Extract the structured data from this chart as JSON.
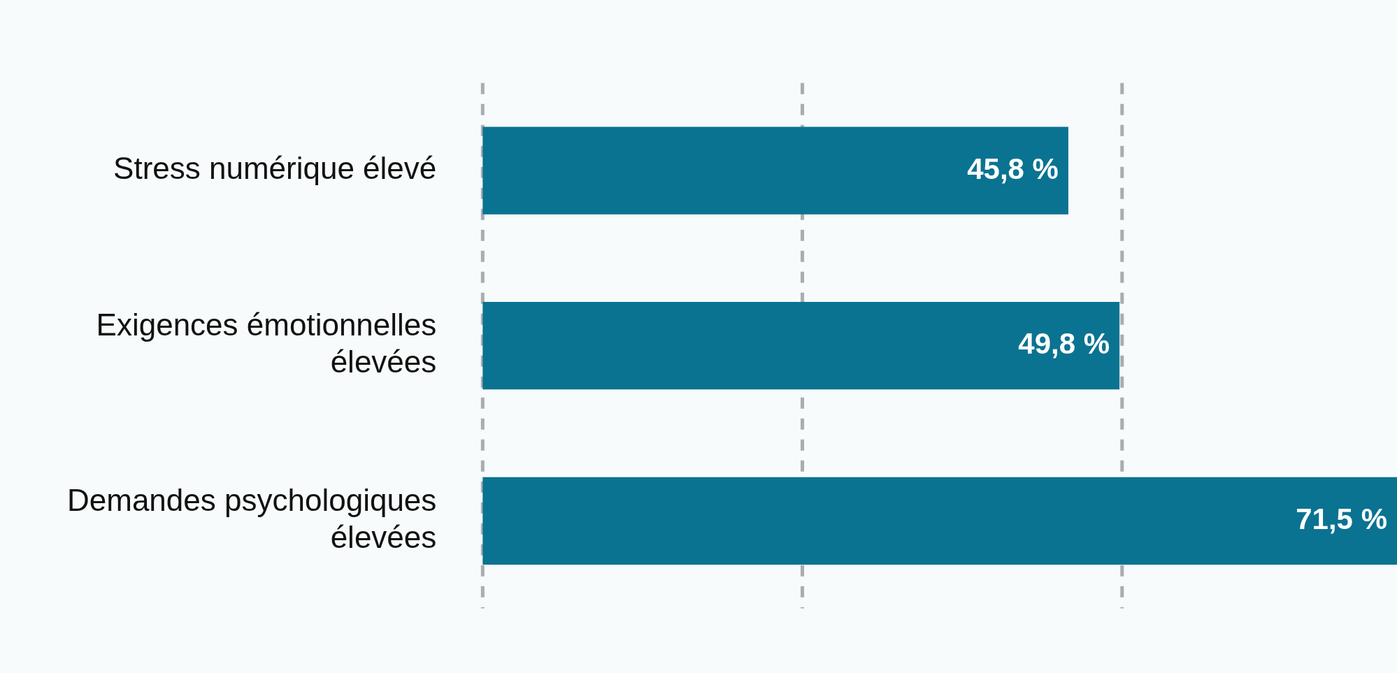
{
  "chart_data": {
    "type": "bar",
    "orientation": "horizontal",
    "categories": [
      "Stress numérique élevé",
      "Exigences émotionnelles élevées",
      "Demandes psychologiques élevées"
    ],
    "values": [
      45.8,
      49.8,
      71.5
    ],
    "value_labels": [
      "45,8 %",
      "49,8 %",
      "71,5 %"
    ],
    "color": "#0a7391",
    "ref_lines": [
      {
        "axis": "x",
        "value": 0,
        "color": "#a9adb2",
        "line_style": "dashed"
      },
      {
        "axis": "x",
        "value": 25,
        "color": "#a9adb2",
        "line_style": "dashed"
      },
      {
        "axis": "x",
        "value": 50,
        "color": "#a9adb2",
        "line_style": "dashed"
      }
    ],
    "tick_labels": "y"
  }
}
